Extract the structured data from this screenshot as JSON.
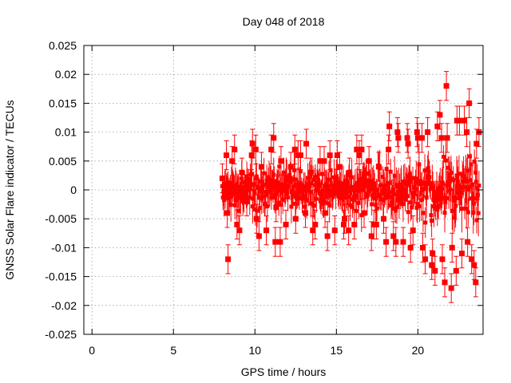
{
  "chart_data": {
    "type": "scatter",
    "title": "Day 048 of 2018",
    "xlabel": "GPS time / hours",
    "ylabel": "GNSS Solar Flare indicator / TECUs",
    "xlim": [
      -0.5,
      24
    ],
    "ylim": [
      -0.025,
      0.025
    ],
    "x_ticks": [
      0,
      5,
      10,
      15,
      20
    ],
    "x_tick_labels": [
      "0",
      "5",
      "10",
      "15",
      "20"
    ],
    "y_ticks": [
      0.025,
      0.02,
      0.015,
      0.01,
      0.005,
      0,
      -0.005,
      -0.01,
      -0.015,
      -0.02,
      -0.025
    ],
    "y_tick_labels": [
      "0.025",
      "0.02",
      "0.015",
      "0.01",
      "0.005",
      "0",
      "-0.005",
      "-0.01",
      "-0.015",
      "-0.02",
      "-0.025"
    ],
    "grid": true,
    "marker_color": "#ff0000",
    "series": [
      {
        "name": "GNSS Solar Flare indicator",
        "x": [
          8.0,
          8.3,
          8.6,
          8.9,
          9.2,
          9.5,
          9.8,
          10.1,
          10.4,
          10.7,
          11.0,
          11.3,
          11.6,
          11.9,
          12.2,
          12.5,
          12.8,
          13.1,
          13.4,
          13.7,
          14.0,
          14.3,
          14.6,
          14.9,
          15.2,
          15.5,
          15.8,
          16.1,
          16.4,
          16.7,
          17.0,
          17.3,
          17.6,
          17.9,
          18.2,
          18.5,
          18.8,
          19.1,
          19.4,
          19.7,
          20.0,
          20.3,
          20.6,
          20.9,
          21.2,
          21.5,
          21.8,
          22.1,
          22.4,
          22.7,
          23.0,
          23.3,
          23.6,
          8.35,
          8.75,
          9.85,
          10.25,
          11.15,
          11.55,
          12.45,
          13.15,
          14.45,
          15.05,
          15.75,
          16.55,
          17.45,
          18.25,
          18.65,
          19.35,
          19.95,
          20.45,
          20.85,
          21.35,
          21.65,
          21.75,
          22.35,
          22.85,
          23.15,
          23.45,
          23.75,
          8.25,
          9.05,
          10.05,
          11.25,
          12.65,
          13.55,
          14.25,
          15.45,
          16.25,
          17.15,
          18.05,
          18.75,
          19.55,
          20.25,
          21.05,
          21.45,
          22.05,
          22.55,
          23.05,
          23.55
        ],
        "y": [
          0.002,
          -0.004,
          0.005,
          -0.006,
          0.003,
          -0.002,
          0.006,
          -0.005,
          0.004,
          -0.007,
          0.007,
          -0.003,
          0.005,
          -0.006,
          0.004,
          -0.005,
          0.006,
          -0.004,
          0.003,
          -0.006,
          0.005,
          -0.004,
          0.006,
          -0.007,
          0.004,
          -0.005,
          0.003,
          -0.006,
          0.006,
          -0.004,
          0.005,
          -0.006,
          0.004,
          -0.005,
          0.007,
          -0.008,
          0.009,
          -0.009,
          0.008,
          -0.007,
          0.009,
          -0.01,
          0.01,
          -0.011,
          0.011,
          -0.012,
          0.009,
          -0.01,
          0.012,
          -0.011,
          0.01,
          -0.012,
          0.008,
          -0.012,
          0.007,
          0.008,
          -0.008,
          0.009,
          -0.009,
          0.007,
          0.008,
          -0.008,
          0.006,
          -0.007,
          0.007,
          -0.006,
          0.011,
          -0.009,
          0.009,
          0.01,
          -0.012,
          -0.013,
          0.013,
          -0.016,
          0.018,
          -0.014,
          0.012,
          0.015,
          -0.013,
          0.01,
          0.006,
          -0.007,
          0.007,
          -0.009,
          0.006,
          -0.007,
          0.005,
          -0.006,
          0.007,
          -0.008,
          -0.009,
          0.01,
          -0.01,
          0.009,
          -0.014,
          0.009,
          -0.017,
          0.012,
          -0.009,
          -0.016
        ]
      }
    ]
  }
}
